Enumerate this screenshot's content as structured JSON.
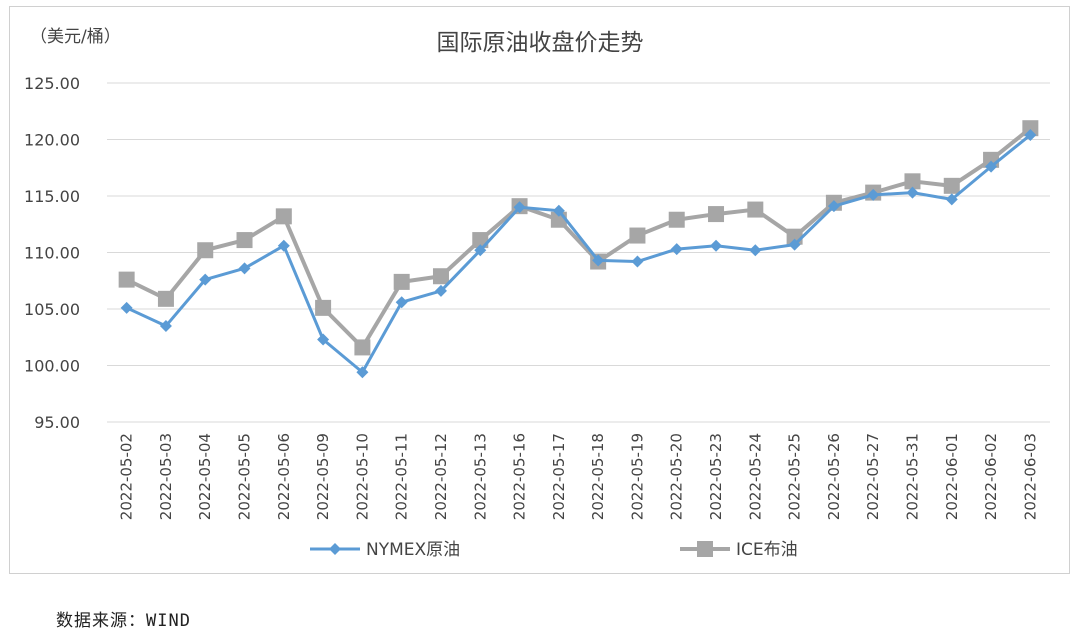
{
  "chart_data": {
    "type": "line",
    "title": "国际原油收盘价走势",
    "ylabel": "（美元/桶）",
    "ylim": [
      95,
      125
    ],
    "yticks": [
      "95.00",
      "100.00",
      "105.00",
      "110.00",
      "115.00",
      "120.00",
      "125.00"
    ],
    "categories": [
      "2022-05-02",
      "2022-05-03",
      "2022-05-04",
      "2022-05-05",
      "2022-05-06",
      "2022-05-09",
      "2022-05-10",
      "2022-05-11",
      "2022-05-12",
      "2022-05-13",
      "2022-05-16",
      "2022-05-17",
      "2022-05-18",
      "2022-05-19",
      "2022-05-20",
      "2022-05-23",
      "2022-05-24",
      "2022-05-25",
      "2022-05-26",
      "2022-05-27",
      "2022-05-31",
      "2022-06-01",
      "2022-06-02",
      "2022-06-03"
    ],
    "series": [
      {
        "name": "NYMEX原油",
        "color": "#5b9bd5",
        "marker": "diamond",
        "values": [
          105.1,
          103.5,
          107.6,
          108.6,
          110.6,
          102.3,
          99.4,
          105.6,
          106.6,
          110.2,
          114.0,
          113.7,
          109.3,
          109.2,
          110.3,
          110.6,
          110.2,
          110.7,
          114.1,
          115.1,
          115.3,
          114.7,
          117.6,
          120.4
        ]
      },
      {
        "name": "ICE布油",
        "color": "#a6a6a6",
        "marker": "square",
        "values": [
          107.6,
          105.9,
          110.2,
          111.1,
          113.2,
          105.1,
          101.6,
          107.4,
          107.9,
          111.1,
          114.1,
          112.9,
          109.2,
          111.5,
          112.9,
          113.4,
          113.8,
          111.4,
          114.4,
          115.3,
          116.3,
          115.9,
          118.2,
          121.0
        ]
      }
    ],
    "grid": true,
    "legend_position": "bottom"
  },
  "source": "数据来源：WIND"
}
